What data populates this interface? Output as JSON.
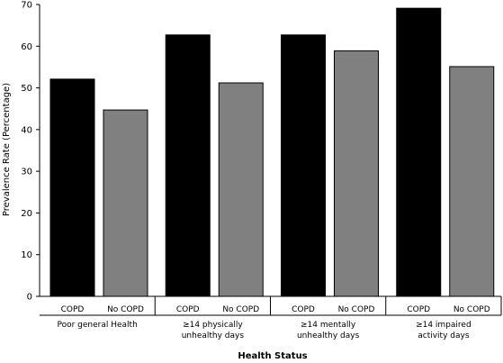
{
  "chart_data": {
    "type": "bar",
    "title": "",
    "xlabel": "Health Status",
    "ylabel": "Prevalence Rate (Percentage)",
    "ylim": [
      0,
      70
    ],
    "yticks": [
      0,
      10,
      20,
      30,
      40,
      50,
      60,
      70
    ],
    "grid": false,
    "legend": "none",
    "groups": [
      {
        "label_lines": [
          "Poor general Health"
        ],
        "bars": [
          {
            "label": "COPD",
            "value": 52.1,
            "color": "#000000"
          },
          {
            "label": "No COPD",
            "value": 44.7,
            "color": "#808080"
          }
        ]
      },
      {
        "label_lines": [
          "≥14 physically",
          "unhealthy days"
        ],
        "bars": [
          {
            "label": "COPD",
            "value": 62.7,
            "color": "#000000"
          },
          {
            "label": "No COPD",
            "value": 51.2,
            "color": "#808080"
          }
        ]
      },
      {
        "label_lines": [
          "≥14 mentally",
          "unhealthy days"
        ],
        "bars": [
          {
            "label": "COPD",
            "value": 62.7,
            "color": "#000000"
          },
          {
            "label": "No COPD",
            "value": 58.9,
            "color": "#808080"
          }
        ]
      },
      {
        "label_lines": [
          "≥14 impaired",
          "activity days"
        ],
        "bars": [
          {
            "label": "COPD",
            "value": 69.1,
            "color": "#000000"
          },
          {
            "label": "No COPD",
            "value": 55.1,
            "color": "#808080"
          }
        ]
      }
    ]
  }
}
